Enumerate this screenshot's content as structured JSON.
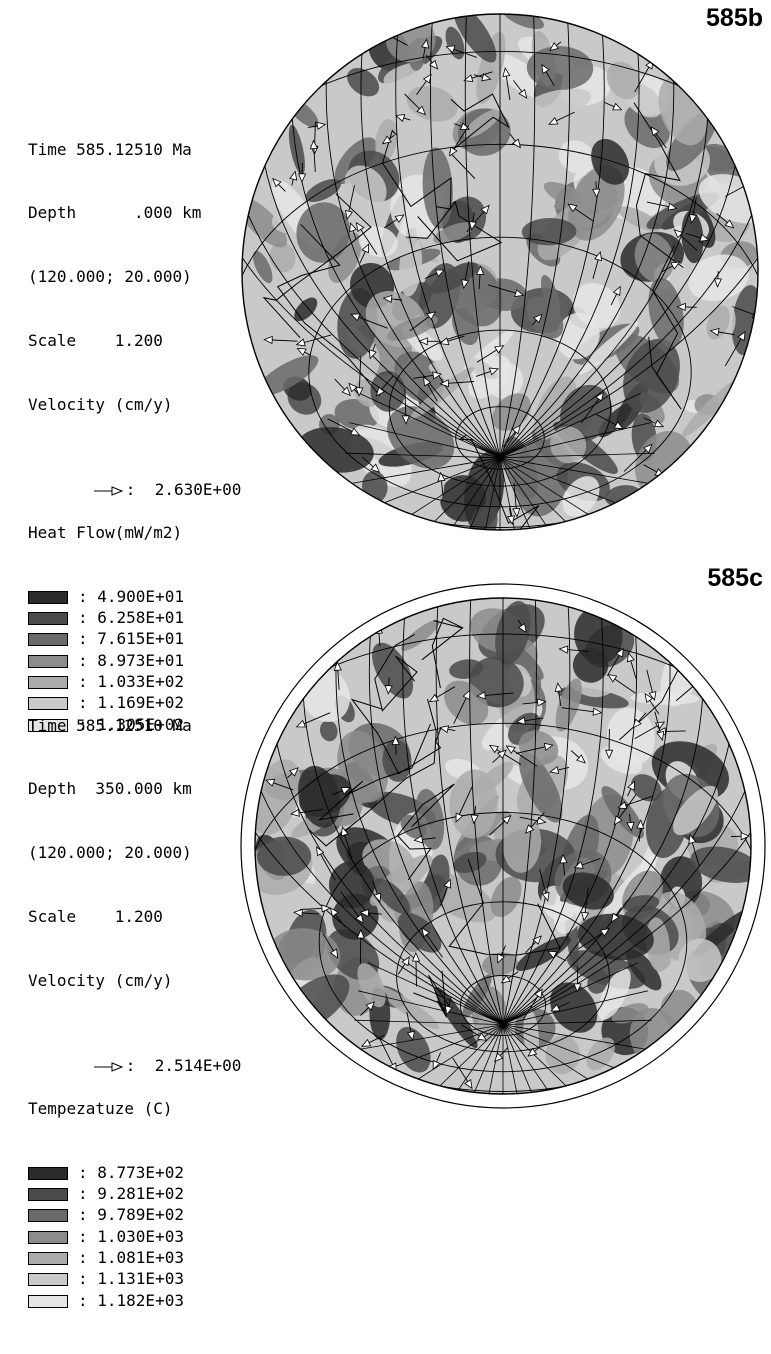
{
  "panels": [
    {
      "tag": "585b",
      "time": "Time 585.12510 Ma",
      "depth": "Depth      .000 km",
      "coords": "(120.000; 20.000)",
      "scale": "Scale    1.200",
      "velocity_label": "Velocity (cm/y)",
      "velocity_value": ":  2.630E+00",
      "field_label": "Heat Flow(mW/m2)",
      "levels": [
        ": 4.900E+01",
        ": 6.258E+01",
        ": 7.615E+01",
        ": 8.973E+01",
        ": 1.033E+02",
        ": 1.169E+02",
        ": 1.305E+02"
      ],
      "colors": [
        "#2b2b2b",
        "#4a4a4a",
        "#6a6a6a",
        "#8c8c8c",
        "#ababab",
        "#c9c9c9",
        "#e6e6e6"
      ]
    },
    {
      "tag": "585c",
      "time": "Time 585.12510 Ma",
      "depth": "Depth  350.000 km",
      "coords": "(120.000; 20.000)",
      "scale": "Scale    1.200",
      "velocity_label": "Velocity (cm/y)",
      "velocity_value": ":  2.514E+00",
      "field_label": "Tempezatuze (C)",
      "levels": [
        ": 8.773E+02",
        ": 9.281E+02",
        ": 9.789E+02",
        ": 1.030E+03",
        ": 1.081E+03",
        ": 1.131E+03",
        ": 1.182E+03"
      ],
      "colors": [
        "#2b2b2b",
        "#4a4a4a",
        "#6a6a6a",
        "#8c8c8c",
        "#ababab",
        "#c9c9c9",
        "#e6e6e6"
      ]
    }
  ]
}
